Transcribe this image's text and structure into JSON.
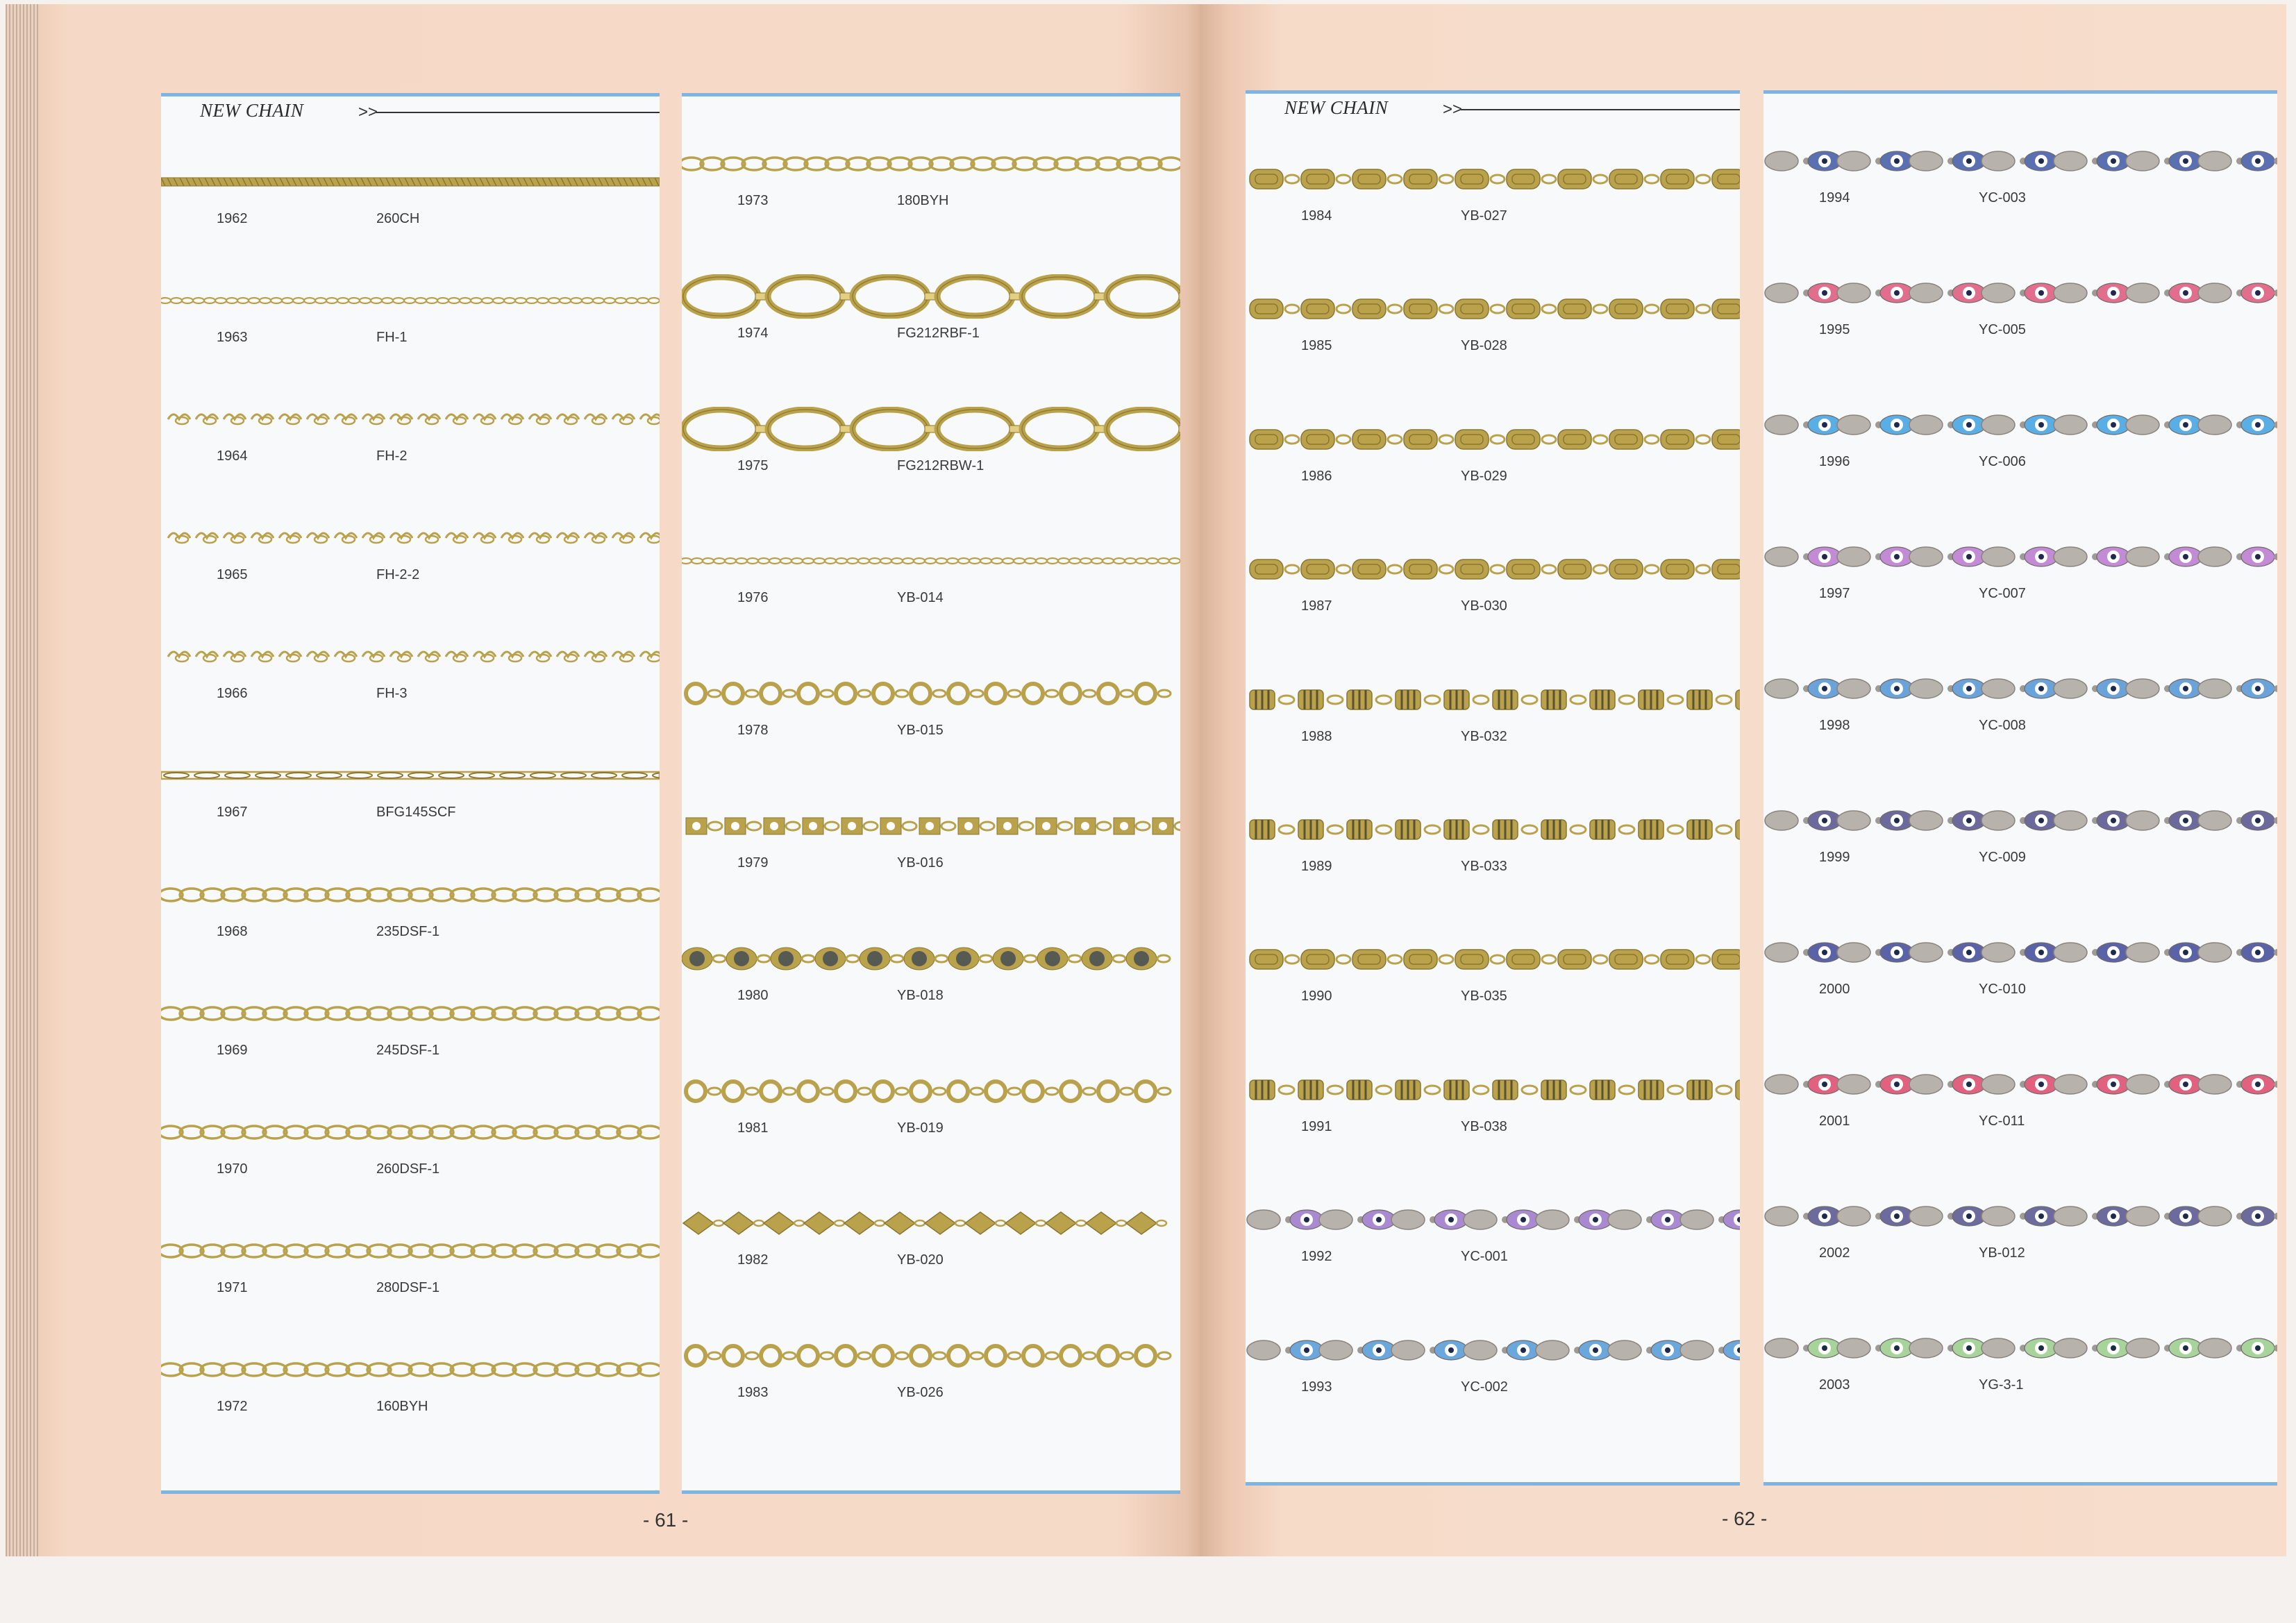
{
  "section_title": "NEW CHAIN",
  "header_arrow": ">>",
  "page_numbers": [
    "- 61 -",
    "- 62 -"
  ],
  "columns": [
    {
      "header": true,
      "items": [
        {
          "no": "1962",
          "code": "260CH",
          "style": "rope",
          "color": "gold"
        },
        {
          "no": "1963",
          "code": "FH-1",
          "style": "fine",
          "color": "gold"
        },
        {
          "no": "1964",
          "code": "FH-2",
          "style": "heart",
          "color": "gold"
        },
        {
          "no": "1965",
          "code": "FH-2-2",
          "style": "heart",
          "color": "gold"
        },
        {
          "no": "1966",
          "code": "FH-3",
          "style": "heart",
          "color": "gold"
        },
        {
          "no": "1967",
          "code": "BFG145SCF",
          "style": "figaro",
          "color": "gold"
        },
        {
          "no": "1968",
          "code": "235DSF-1",
          "style": "oval",
          "color": "gold"
        },
        {
          "no": "1969",
          "code": "245DSF-1",
          "style": "oval",
          "color": "gold"
        },
        {
          "no": "1970",
          "code": "260DSF-1",
          "style": "oval",
          "color": "gold"
        },
        {
          "no": "1971",
          "code": "280DSF-1",
          "style": "oval",
          "color": "gold"
        },
        {
          "no": "1972",
          "code": "160BYH",
          "style": "oval",
          "color": "gold"
        }
      ]
    },
    {
      "header": false,
      "items": [
        {
          "no": "1973",
          "code": "180BYH",
          "style": "oval",
          "color": "gold"
        },
        {
          "no": "1974",
          "code": "FG212RBF-1",
          "style": "bigoval",
          "color": "gold"
        },
        {
          "no": "1975",
          "code": "FG212RBW-1",
          "style": "bigoval",
          "color": "gold"
        },
        {
          "no": "1976",
          "code": "YB-014",
          "style": "fine",
          "color": "gold"
        },
        {
          "no": "1978",
          "code": "YB-015",
          "style": "ring",
          "color": "gold"
        },
        {
          "no": "1979",
          "code": "YB-016",
          "style": "star",
          "color": "gold"
        },
        {
          "no": "1980",
          "code": "YB-018",
          "style": "disc",
          "color": "#555a52"
        },
        {
          "no": "1981",
          "code": "YB-019",
          "style": "ring",
          "color": "gold"
        },
        {
          "no": "1982",
          "code": "YB-020",
          "style": "diamond",
          "color": "gold"
        },
        {
          "no": "1983",
          "code": "YB-026",
          "style": "ring",
          "color": "gold"
        }
      ]
    },
    {
      "header": true,
      "items": [
        {
          "no": "1984",
          "code": "YB-027",
          "style": "plate",
          "color": "gold"
        },
        {
          "no": "1985",
          "code": "YB-028",
          "style": "plate",
          "color": "gold"
        },
        {
          "no": "1986",
          "code": "YB-029",
          "style": "plate",
          "color": "gold"
        },
        {
          "no": "1987",
          "code": "YB-030",
          "style": "plate",
          "color": "gold"
        },
        {
          "no": "1988",
          "code": "YB-032",
          "style": "bar",
          "color": "gold"
        },
        {
          "no": "1989",
          "code": "YB-033",
          "style": "bar",
          "color": "gold"
        },
        {
          "no": "1990",
          "code": "YB-035",
          "style": "plate",
          "color": "gold"
        },
        {
          "no": "1991",
          "code": "YB-038",
          "style": "bar",
          "color": "gold"
        },
        {
          "no": "1992",
          "code": "YC-001",
          "style": "eye",
          "color": "#a98ad0"
        },
        {
          "no": "1993",
          "code": "YC-002",
          "style": "eye",
          "color": "#6aa7dd"
        }
      ]
    },
    {
      "header": false,
      "items": [
        {
          "no": "1994",
          "code": "YC-003",
          "style": "eye",
          "color": "#5b6fb3"
        },
        {
          "no": "1995",
          "code": "YC-005",
          "style": "eye",
          "color": "#e26d8c"
        },
        {
          "no": "1996",
          "code": "YC-006",
          "style": "eye",
          "color": "#5aaee6"
        },
        {
          "no": "1997",
          "code": "YC-007",
          "style": "eye",
          "color": "#c38ad6"
        },
        {
          "no": "1998",
          "code": "YC-008",
          "style": "eye",
          "color": "#6aa3da"
        },
        {
          "no": "1999",
          "code": "YC-009",
          "style": "eye",
          "color": "#6c6a9c"
        },
        {
          "no": "2000",
          "code": "YC-010",
          "style": "eye",
          "color": "#5a63a8"
        },
        {
          "no": "2001",
          "code": "YC-011",
          "style": "eye",
          "color": "#e2617f"
        },
        {
          "no": "2002",
          "code": "YB-012",
          "style": "eye",
          "color": "#6d6a9e"
        },
        {
          "no": "2003",
          "code": "YG-3-1",
          "style": "eye",
          "color": "#a6d49a"
        }
      ]
    }
  ]
}
